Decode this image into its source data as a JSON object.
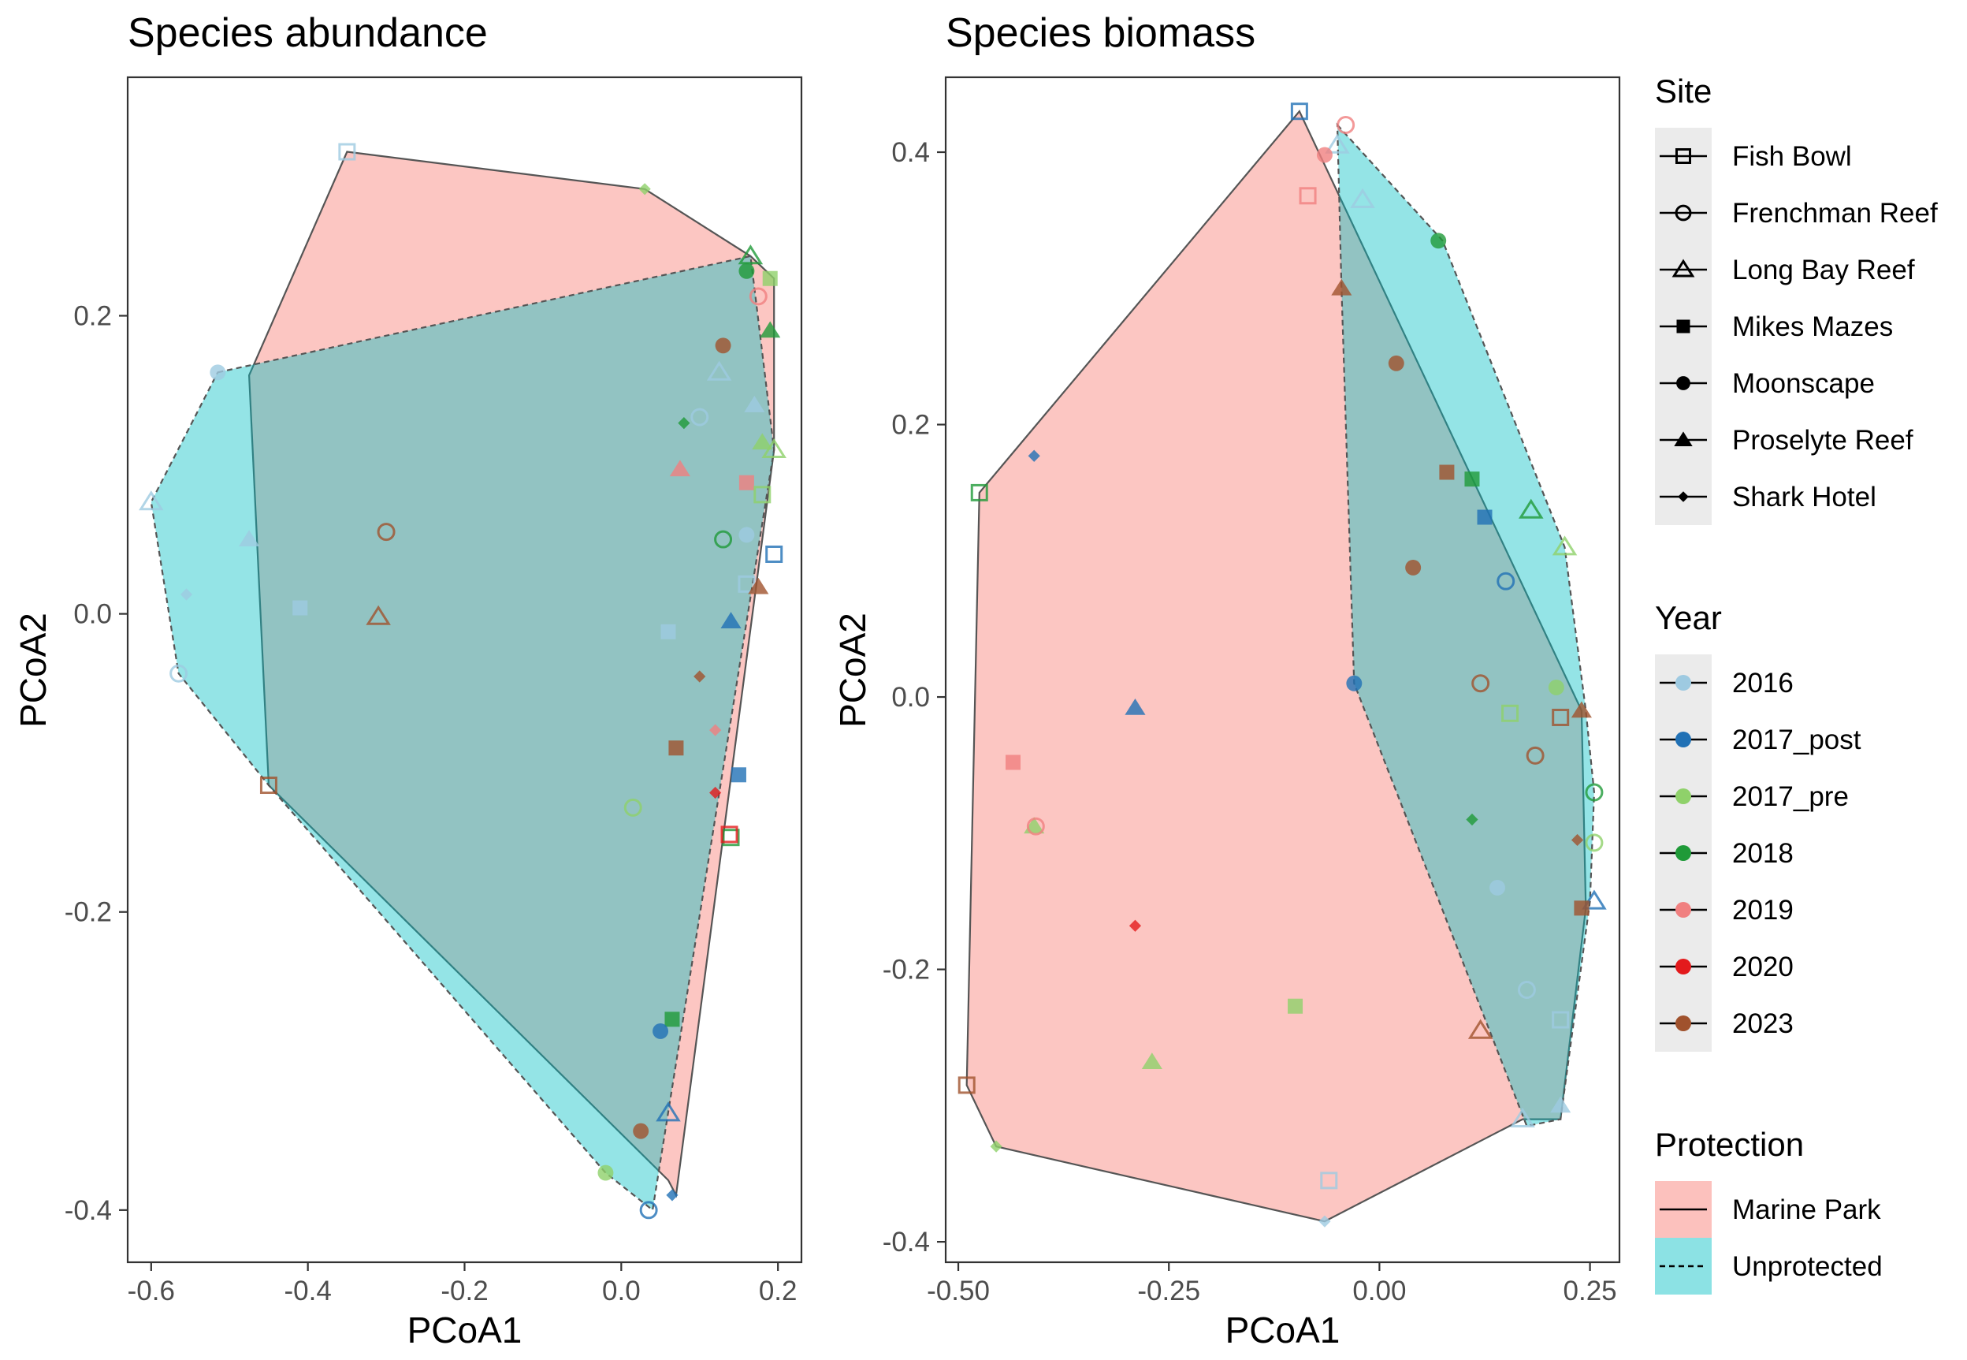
{
  "chart_data": [
    {
      "type": "scatter",
      "title": "Species abundance",
      "xlabel": "PCoA1",
      "ylabel": "PCoA2",
      "xlim": [
        -0.63,
        0.23
      ],
      "ylim": [
        -0.435,
        0.36
      ],
      "xticks": [
        -0.6,
        -0.4,
        -0.2,
        0.0,
        0.2
      ],
      "xtick_labels": [
        "-0.6",
        "-0.4",
        "-0.2",
        "0.0",
        "0.2"
      ],
      "yticks": [
        -0.4,
        -0.2,
        0.0,
        0.2
      ],
      "ytick_labels": [
        "-0.4",
        "-0.2",
        "0.0",
        "0.2"
      ],
      "grid": false,
      "hulls": [
        {
          "protection": "Marine Park",
          "vertices": [
            [
              -0.35,
              0.31
            ],
            [
              0.03,
              0.285
            ],
            [
              0.165,
              0.24
            ],
            [
              0.195,
              0.225
            ],
            [
              0.195,
              0.11
            ],
            [
              0.07,
              -0.39
            ],
            [
              0.06,
              -0.38
            ],
            [
              -0.45,
              -0.115
            ],
            [
              -0.475,
              0.16
            ]
          ]
        },
        {
          "protection": "Unprotected",
          "vertices": [
            [
              -0.515,
              0.162
            ],
            [
              0.165,
              0.24
            ],
            [
              0.195,
              0.11
            ],
            [
              0.04,
              -0.4
            ],
            [
              -0.02,
              -0.375
            ],
            [
              -0.45,
              -0.115
            ],
            [
              -0.565,
              -0.04
            ],
            [
              -0.6,
              0.075
            ]
          ]
        }
      ],
      "points": [
        {
          "x": -0.35,
          "y": 0.31,
          "site": "Fish Bowl",
          "year": "2016"
        },
        {
          "x": 0.03,
          "y": 0.285,
          "site": "Shark Hotel",
          "year": "2017_pre"
        },
        {
          "x": 0.165,
          "y": 0.24,
          "site": "Long Bay Reef",
          "year": "2018"
        },
        {
          "x": 0.16,
          "y": 0.23,
          "site": "Moonscape",
          "year": "2018"
        },
        {
          "x": 0.19,
          "y": 0.225,
          "site": "Mikes Mazes",
          "year": "2017_pre"
        },
        {
          "x": 0.175,
          "y": 0.213,
          "site": "Frenchman Reef",
          "year": "2019"
        },
        {
          "x": 0.19,
          "y": 0.19,
          "site": "Proselyte Reef",
          "year": "2018"
        },
        {
          "x": 0.13,
          "y": 0.18,
          "site": "Moonscape",
          "year": "2023"
        },
        {
          "x": 0.125,
          "y": 0.162,
          "site": "Long Bay Reef",
          "year": "2016"
        },
        {
          "x": -0.515,
          "y": 0.162,
          "site": "Moonscape",
          "year": "2016"
        },
        {
          "x": 0.17,
          "y": 0.14,
          "site": "Proselyte Reef",
          "year": "2016"
        },
        {
          "x": 0.1,
          "y": 0.132,
          "site": "Frenchman Reef",
          "year": "2016"
        },
        {
          "x": 0.08,
          "y": 0.128,
          "site": "Shark Hotel",
          "year": "2018"
        },
        {
          "x": 0.18,
          "y": 0.115,
          "site": "Proselyte Reef",
          "year": "2017_pre"
        },
        {
          "x": 0.195,
          "y": 0.11,
          "site": "Long Bay Reef",
          "year": "2017_pre"
        },
        {
          "x": 0.075,
          "y": 0.097,
          "site": "Proselyte Reef",
          "year": "2019"
        },
        {
          "x": 0.16,
          "y": 0.088,
          "site": "Mikes Mazes",
          "year": "2019"
        },
        {
          "x": 0.18,
          "y": 0.08,
          "site": "Fish Bowl",
          "year": "2017_pre"
        },
        {
          "x": -0.6,
          "y": 0.075,
          "site": "Long Bay Reef",
          "year": "2016"
        },
        {
          "x": -0.3,
          "y": 0.055,
          "site": "Frenchman Reef",
          "year": "2023"
        },
        {
          "x": 0.16,
          "y": 0.053,
          "site": "Moonscape",
          "year": "2016"
        },
        {
          "x": 0.13,
          "y": 0.05,
          "site": "Frenchman Reef",
          "year": "2018"
        },
        {
          "x": -0.475,
          "y": 0.05,
          "site": "Proselyte Reef",
          "year": "2016"
        },
        {
          "x": 0.195,
          "y": 0.04,
          "site": "Fish Bowl",
          "year": "2017_post"
        },
        {
          "x": 0.16,
          "y": 0.02,
          "site": "Fish Bowl",
          "year": "2016"
        },
        {
          "x": 0.175,
          "y": 0.018,
          "site": "Proselyte Reef",
          "year": "2023"
        },
        {
          "x": -0.555,
          "y": 0.013,
          "site": "Shark Hotel",
          "year": "2016"
        },
        {
          "x": -0.41,
          "y": 0.004,
          "site": "Mikes Mazes",
          "year": "2016"
        },
        {
          "x": -0.31,
          "y": -0.002,
          "site": "Long Bay Reef",
          "year": "2023"
        },
        {
          "x": 0.14,
          "y": -0.005,
          "site": "Proselyte Reef",
          "year": "2017_post"
        },
        {
          "x": 0.06,
          "y": -0.012,
          "site": "Mikes Mazes",
          "year": "2016"
        },
        {
          "x": 0.1,
          "y": -0.042,
          "site": "Shark Hotel",
          "year": "2023"
        },
        {
          "x": -0.565,
          "y": -0.04,
          "site": "Frenchman Reef",
          "year": "2016"
        },
        {
          "x": 0.12,
          "y": -0.078,
          "site": "Shark Hotel",
          "year": "2019"
        },
        {
          "x": 0.07,
          "y": -0.09,
          "site": "Mikes Mazes",
          "year": "2023"
        },
        {
          "x": 0.15,
          "y": -0.108,
          "site": "Mikes Mazes",
          "year": "2017_post"
        },
        {
          "x": -0.45,
          "y": -0.115,
          "site": "Fish Bowl",
          "year": "2023"
        },
        {
          "x": 0.12,
          "y": -0.12,
          "site": "Shark Hotel",
          "year": "2020"
        },
        {
          "x": 0.015,
          "y": -0.13,
          "site": "Frenchman Reef",
          "year": "2017_pre"
        },
        {
          "x": 0.14,
          "y": -0.15,
          "site": "Fish Bowl",
          "year": "2018"
        },
        {
          "x": 0.138,
          "y": -0.148,
          "site": "Fish Bowl",
          "year": "2020"
        },
        {
          "x": 0.065,
          "y": -0.272,
          "site": "Mikes Mazes",
          "year": "2018"
        },
        {
          "x": 0.05,
          "y": -0.28,
          "site": "Moonscape",
          "year": "2017_post"
        },
        {
          "x": 0.06,
          "y": -0.335,
          "site": "Long Bay Reef",
          "year": "2017_post"
        },
        {
          "x": 0.025,
          "y": -0.347,
          "site": "Moonscape",
          "year": "2023"
        },
        {
          "x": -0.02,
          "y": -0.375,
          "site": "Moonscape",
          "year": "2017_pre"
        },
        {
          "x": 0.065,
          "y": -0.39,
          "site": "Shark Hotel",
          "year": "2017_post"
        },
        {
          "x": 0.035,
          "y": -0.4,
          "site": "Frenchman Reef",
          "year": "2017_post"
        }
      ]
    },
    {
      "type": "scatter",
      "title": "Species biomass",
      "xlabel": "PCoA1",
      "ylabel": "PCoA2",
      "xlim": [
        -0.515,
        0.285
      ],
      "ylim": [
        -0.415,
        0.455
      ],
      "xticks": [
        -0.5,
        -0.25,
        0.0,
        0.25
      ],
      "xtick_labels": [
        "-0.50",
        "-0.25",
        "0.00",
        "0.25"
      ],
      "yticks": [
        -0.4,
        -0.2,
        0.0,
        0.2,
        0.4
      ],
      "ytick_labels": [
        "-0.4",
        "-0.2",
        "0.0",
        "0.2",
        "0.4"
      ],
      "grid": false,
      "hulls": [
        {
          "protection": "Marine Park",
          "vertices": [
            [
              -0.095,
              0.43
            ],
            [
              0.24,
              -0.01
            ],
            [
              0.245,
              -0.155
            ],
            [
              0.215,
              -0.31
            ],
            [
              0.17,
              -0.31
            ],
            [
              -0.065,
              -0.385
            ],
            [
              -0.455,
              -0.33
            ],
            [
              -0.49,
              -0.285
            ],
            [
              -0.475,
              0.15
            ]
          ]
        },
        {
          "protection": "Unprotected",
          "vertices": [
            [
              -0.05,
              0.42
            ],
            [
              0.075,
              0.335
            ],
            [
              0.22,
              0.11
            ],
            [
              0.245,
              -0.01
            ],
            [
              0.255,
              -0.07
            ],
            [
              0.25,
              -0.15
            ],
            [
              0.215,
              -0.31
            ],
            [
              0.175,
              -0.315
            ],
            [
              -0.03,
              0.01
            ],
            [
              -0.045,
              0.3
            ]
          ]
        }
      ],
      "points": [
        {
          "x": -0.095,
          "y": 0.43,
          "site": "Fish Bowl",
          "year": "2017_post"
        },
        {
          "x": -0.04,
          "y": 0.42,
          "site": "Frenchman Reef",
          "year": "2019"
        },
        {
          "x": -0.05,
          "y": 0.405,
          "site": "Long Bay Reef",
          "year": "2016"
        },
        {
          "x": -0.065,
          "y": 0.398,
          "site": "Moonscape",
          "year": "2019"
        },
        {
          "x": -0.085,
          "y": 0.368,
          "site": "Fish Bowl",
          "year": "2019"
        },
        {
          "x": -0.02,
          "y": 0.365,
          "site": "Long Bay Reef",
          "year": "2016"
        },
        {
          "x": 0.07,
          "y": 0.335,
          "site": "Moonscape",
          "year": "2018"
        },
        {
          "x": -0.045,
          "y": 0.3,
          "site": "Proselyte Reef",
          "year": "2023"
        },
        {
          "x": 0.02,
          "y": 0.245,
          "site": "Moonscape",
          "year": "2023"
        },
        {
          "x": -0.41,
          "y": 0.177,
          "site": "Shark Hotel",
          "year": "2017_post"
        },
        {
          "x": 0.08,
          "y": 0.165,
          "site": "Mikes Mazes",
          "year": "2023"
        },
        {
          "x": 0.11,
          "y": 0.16,
          "site": "Mikes Mazes",
          "year": "2018"
        },
        {
          "x": -0.475,
          "y": 0.15,
          "site": "Fish Bowl",
          "year": "2018"
        },
        {
          "x": 0.18,
          "y": 0.137,
          "site": "Long Bay Reef",
          "year": "2018"
        },
        {
          "x": 0.125,
          "y": 0.132,
          "site": "Mikes Mazes",
          "year": "2017_post"
        },
        {
          "x": 0.22,
          "y": 0.11,
          "site": "Long Bay Reef",
          "year": "2017_pre"
        },
        {
          "x": 0.04,
          "y": 0.095,
          "site": "Moonscape",
          "year": "2023"
        },
        {
          "x": 0.15,
          "y": 0.085,
          "site": "Frenchman Reef",
          "year": "2017_post"
        },
        {
          "x": -0.03,
          "y": 0.01,
          "site": "Moonscape",
          "year": "2017_post"
        },
        {
          "x": 0.12,
          "y": 0.01,
          "site": "Frenchman Reef",
          "year": "2023"
        },
        {
          "x": 0.21,
          "y": 0.007,
          "site": "Moonscape",
          "year": "2017_pre"
        },
        {
          "x": -0.29,
          "y": -0.008,
          "site": "Proselyte Reef",
          "year": "2017_post"
        },
        {
          "x": 0.24,
          "y": -0.01,
          "site": "Proselyte Reef",
          "year": "2023"
        },
        {
          "x": 0.155,
          "y": -0.012,
          "site": "Fish Bowl",
          "year": "2017_pre"
        },
        {
          "x": 0.215,
          "y": -0.015,
          "site": "Fish Bowl",
          "year": "2023"
        },
        {
          "x": 0.185,
          "y": -0.043,
          "site": "Frenchman Reef",
          "year": "2023"
        },
        {
          "x": -0.435,
          "y": -0.048,
          "site": "Mikes Mazes",
          "year": "2019"
        },
        {
          "x": 0.255,
          "y": -0.07,
          "site": "Frenchman Reef",
          "year": "2018"
        },
        {
          "x": 0.11,
          "y": -0.09,
          "site": "Shark Hotel",
          "year": "2018"
        },
        {
          "x": -0.41,
          "y": -0.095,
          "site": "Proselyte Reef",
          "year": "2017_pre"
        },
        {
          "x": -0.408,
          "y": -0.095,
          "site": "Frenchman Reef",
          "year": "2019"
        },
        {
          "x": 0.235,
          "y": -0.105,
          "site": "Shark Hotel",
          "year": "2023"
        },
        {
          "x": 0.255,
          "y": -0.107,
          "site": "Frenchman Reef",
          "year": "2017_pre"
        },
        {
          "x": 0.14,
          "y": -0.14,
          "site": "Moonscape",
          "year": "2016"
        },
        {
          "x": 0.255,
          "y": -0.15,
          "site": "Long Bay Reef",
          "year": "2017_post"
        },
        {
          "x": 0.24,
          "y": -0.155,
          "site": "Mikes Mazes",
          "year": "2023"
        },
        {
          "x": -0.29,
          "y": -0.168,
          "site": "Shark Hotel",
          "year": "2020"
        },
        {
          "x": 0.175,
          "y": -0.215,
          "site": "Frenchman Reef",
          "year": "2016"
        },
        {
          "x": -0.1,
          "y": -0.227,
          "site": "Mikes Mazes",
          "year": "2017_pre"
        },
        {
          "x": 0.215,
          "y": -0.237,
          "site": "Fish Bowl",
          "year": "2016"
        },
        {
          "x": 0.12,
          "y": -0.245,
          "site": "Long Bay Reef",
          "year": "2023"
        },
        {
          "x": -0.27,
          "y": -0.268,
          "site": "Proselyte Reef",
          "year": "2017_pre"
        },
        {
          "x": -0.49,
          "y": -0.285,
          "site": "Fish Bowl",
          "year": "2023"
        },
        {
          "x": 0.215,
          "y": -0.3,
          "site": "Proselyte Reef",
          "year": "2016"
        },
        {
          "x": 0.17,
          "y": -0.31,
          "site": "Long Bay Reef",
          "year": "2016"
        },
        {
          "x": -0.455,
          "y": -0.33,
          "site": "Shark Hotel",
          "year": "2017_pre"
        },
        {
          "x": -0.06,
          "y": -0.355,
          "site": "Fish Bowl",
          "year": "2016"
        },
        {
          "x": -0.065,
          "y": -0.385,
          "site": "Shark Hotel",
          "year": "2016"
        }
      ]
    }
  ],
  "legend": {
    "site": {
      "title": "Site",
      "items": [
        {
          "label": "Fish Bowl",
          "shape": "open-square"
        },
        {
          "label": "Frenchman Reef",
          "shape": "open-circle"
        },
        {
          "label": "Long Bay Reef",
          "shape": "open-triangle"
        },
        {
          "label": "Mikes Mazes",
          "shape": "filled-square"
        },
        {
          "label": "Moonscape",
          "shape": "filled-circle"
        },
        {
          "label": "Proselyte Reef",
          "shape": "filled-triangle"
        },
        {
          "label": "Shark Hotel",
          "shape": "filled-diamond"
        }
      ]
    },
    "year": {
      "title": "Year",
      "items": [
        {
          "label": "2016",
          "color": "#9ecae1"
        },
        {
          "label": "2017_post",
          "color": "#2171b5"
        },
        {
          "label": "2017_pre",
          "color": "#8fd16a"
        },
        {
          "label": "2018",
          "color": "#1f9a38"
        },
        {
          "label": "2019",
          "color": "#f08080"
        },
        {
          "label": "2020",
          "color": "#e31a1c"
        },
        {
          "label": "2023",
          "color": "#a0522d"
        }
      ]
    },
    "protection": {
      "title": "Protection",
      "items": [
        {
          "label": "Marine Park",
          "fill": "#f8766d",
          "linetype": "solid"
        },
        {
          "label": "Unprotected",
          "fill": "#00bfc4",
          "linetype": "dashed"
        }
      ]
    }
  },
  "colors": {
    "marine_park_fill": "#f8766d",
    "unprotected_fill": "#00bfc4",
    "hull_outline": "#555555",
    "legend_key_bg": "#ebebeb"
  }
}
